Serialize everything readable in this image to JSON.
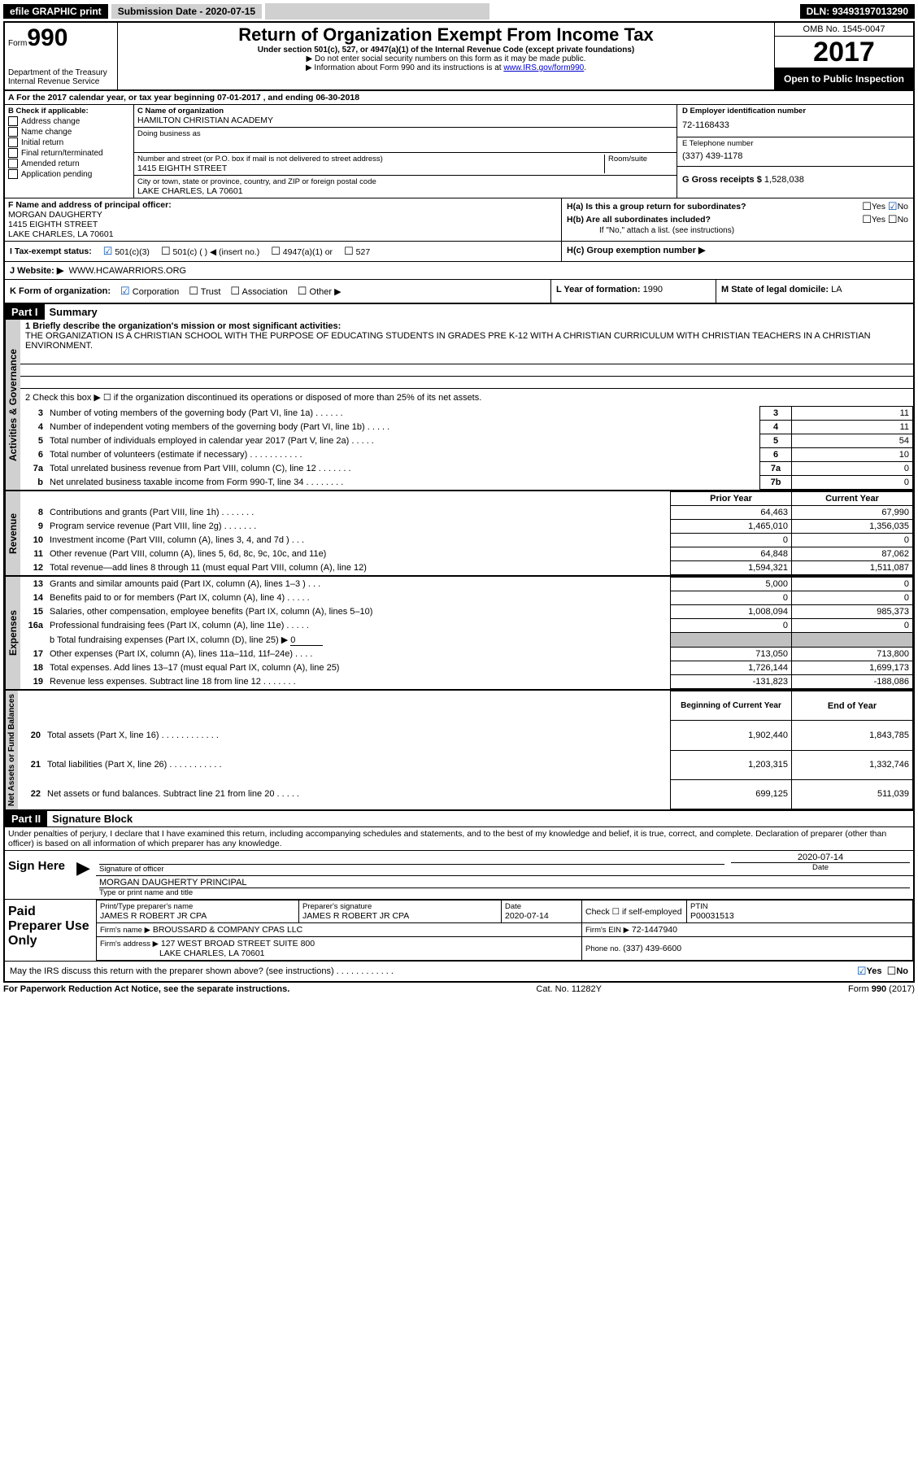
{
  "topbar": {
    "efile": "efile GRAPHIC print",
    "submission_label": "Submission Date - 2020-07-15",
    "dln": "DLN: 93493197013290"
  },
  "header": {
    "form_word": "Form",
    "form_no": "990",
    "dept1": "Department of the Treasury",
    "dept2": "Internal Revenue Service",
    "title": "Return of Organization Exempt From Income Tax",
    "subtitle": "Under section 501(c), 527, or 4947(a)(1) of the Internal Revenue Code (except private foundations)",
    "note1": "▶ Do not enter social security numbers on this form as it may be made public.",
    "note2_pre": "▶ Information about Form 990 and its instructions is at ",
    "note2_link": "www.IRS.gov/form990",
    "note2_post": ".",
    "omb": "OMB No. 1545-0047",
    "year": "2017",
    "open": "Open to Public Inspection"
  },
  "rowA": "A For the 2017 calendar year, or tax year beginning 07-01-2017     , and ending 06-30-2018",
  "boxB": {
    "title": "B Check if applicable:",
    "items": [
      "Address change",
      "Name change",
      "Initial return",
      "Final return/terminated",
      "Amended return",
      "Application pending"
    ]
  },
  "boxC": {
    "label_name": "C Name of organization",
    "org": "HAMILTON CHRISTIAN ACADEMY",
    "dba_label": "Doing business as",
    "addr_label": "Number and street (or P.O. box if mail is not delivered to street address)",
    "room_label": "Room/suite",
    "addr": "1415 EIGHTH STREET",
    "city_label": "City or town, state or province, country, and ZIP or foreign postal code",
    "city": "LAKE CHARLES, LA  70601"
  },
  "boxD": {
    "label": "D Employer identification number",
    "value": "72-1168433"
  },
  "boxE": {
    "label": "E Telephone number",
    "value": "(337) 439-1178"
  },
  "boxG": {
    "label": "G Gross receipts $",
    "value": "1,528,038"
  },
  "boxF": {
    "label": "F  Name and address of principal officer:",
    "lines": [
      "MORGAN DAUGHERTY",
      "1415 EIGHTH STREET",
      "LAKE CHARLES, LA  70601"
    ]
  },
  "boxH": {
    "a": "H(a)  Is this a group return for subordinates?",
    "b": "H(b)  Are all subordinates included?",
    "b_note": "If \"No,\" attach a list. (see instructions)",
    "c": "H(c)  Group exemption number ▶",
    "yes": "Yes",
    "no": "No"
  },
  "boxI": {
    "label": "I   Tax-exempt status:",
    "opts": [
      "501(c)(3)",
      "501(c) (   ) ◀ (insert no.)",
      "4947(a)(1) or",
      "527"
    ]
  },
  "boxJ": {
    "label": "J   Website: ▶",
    "value": "WWW.HCAWARRIORS.ORG"
  },
  "boxK": {
    "label": "K Form of organization:",
    "opts": [
      "Corporation",
      "Trust",
      "Association",
      "Other ▶"
    ]
  },
  "boxL": {
    "label": "L Year of formation:",
    "value": "1990"
  },
  "boxM": {
    "label": "M State of legal domicile:",
    "value": "LA"
  },
  "part1": {
    "label": "Part I",
    "title": "Summary",
    "q1": "1  Briefly describe the organization's mission or most significant activities:",
    "mission": "THE ORGANIZATION IS A CHRISTIAN SCHOOL WITH THE PURPOSE OF EDUCATING STUDENTS IN GRADES PRE K-12 WITH A CHRISTIAN CURRICULUM WITH CHRISTIAN TEACHERS IN A CHRISTIAN ENVIRONMENT.",
    "q2": "2  Check this box ▶ ☐  if the organization discontinued its operations or disposed of more than 25% of its net assets.",
    "rows": [
      {
        "n": "3",
        "t": "Number of voting members of the governing body (Part VI, line 1a)   .    .    .    .    .    .",
        "k": "3",
        "v": "11"
      },
      {
        "n": "4",
        "t": "Number of independent voting members of the governing body (Part VI, line 1b)  .    .    .    .    .",
        "k": "4",
        "v": "11"
      },
      {
        "n": "5",
        "t": "Total number of individuals employed in calendar year 2017 (Part V, line 2a)  .    .    .    .    .",
        "k": "5",
        "v": "54"
      },
      {
        "n": "6",
        "t": "Total number of volunteers (estimate if necessary)   .    .    .    .    .    .    .    .    .    .    .",
        "k": "6",
        "v": "10"
      },
      {
        "n": "7a",
        "t": "Total unrelated business revenue from Part VIII, column (C), line 12  .    .    .    .    .    .    .",
        "k": "7a",
        "v": "0"
      },
      {
        "n": "b",
        "t": "Net unrelated business taxable income from Form 990-T, line 34   .    .    .    .    .    .    .    .",
        "k": "7b",
        "v": "0"
      }
    ],
    "hdr_prior": "Prior Year",
    "hdr_curr": "Current Year",
    "rev": [
      {
        "n": "8",
        "t": "Contributions and grants (Part VIII, line 1h)   .    .    .    .    .    .    .",
        "p": "64,463",
        "c": "67,990"
      },
      {
        "n": "9",
        "t": "Program service revenue (Part VIII, line 2g)  .    .    .    .    .    .    .",
        "p": "1,465,010",
        "c": "1,356,035"
      },
      {
        "n": "10",
        "t": "Investment income (Part VIII, column (A), lines 3, 4, and 7d )  .    .    .",
        "p": "0",
        "c": "0"
      },
      {
        "n": "11",
        "t": "Other revenue (Part VIII, column (A), lines 5, 6d, 8c, 9c, 10c, and 11e)",
        "p": "64,848",
        "c": "87,062"
      },
      {
        "n": "12",
        "t": "Total revenue—add lines 8 through 11 (must equal Part VIII, column (A), line 12)",
        "p": "1,594,321",
        "c": "1,511,087"
      }
    ],
    "exp": [
      {
        "n": "13",
        "t": "Grants and similar amounts paid (Part IX, column (A), lines 1–3 )   .    .    .",
        "p": "5,000",
        "c": "0"
      },
      {
        "n": "14",
        "t": "Benefits paid to or for members (Part IX, column (A), line 4)  .    .    .    .    .",
        "p": "0",
        "c": "0"
      },
      {
        "n": "15",
        "t": "Salaries, other compensation, employee benefits (Part IX, column (A), lines 5–10)",
        "p": "1,008,094",
        "c": "985,373"
      },
      {
        "n": "16a",
        "t": "Professional fundraising fees (Part IX, column (A), line 11e)  .    .    .    .    .",
        "p": "0",
        "c": "0"
      }
    ],
    "exp_b": "b  Total fundraising expenses (Part IX, column (D), line 25) ▶",
    "exp_b_val": "0",
    "exp2": [
      {
        "n": "17",
        "t": "Other expenses (Part IX, column (A), lines 11a–11d, 11f–24e)  .    .    .    .",
        "p": "713,050",
        "c": "713,800"
      },
      {
        "n": "18",
        "t": "Total expenses. Add lines 13–17 (must equal Part IX, column (A), line 25)",
        "p": "1,726,144",
        "c": "1,699,173"
      },
      {
        "n": "19",
        "t": "Revenue less expenses. Subtract line 18 from line 12  .    .    .    .    .    .    .",
        "p": "-131,823",
        "c": "-188,086"
      }
    ],
    "hdr_beg": "Beginning of Current Year",
    "hdr_end": "End of Year",
    "net": [
      {
        "n": "20",
        "t": "Total assets (Part X, line 16)  .    .    .    .    .    .    .    .    .    .    .    .",
        "p": "1,902,440",
        "c": "1,843,785"
      },
      {
        "n": "21",
        "t": "Total liabilities (Part X, line 26)  .    .    .    .    .    .    .    .    .    .    .",
        "p": "1,203,315",
        "c": "1,332,746"
      },
      {
        "n": "22",
        "t": "Net assets or fund balances. Subtract line 21 from line 20  .    .    .    .    .",
        "p": "699,125",
        "c": "511,039"
      }
    ]
  },
  "vtabs": {
    "act": "Activities & Governance",
    "rev": "Revenue",
    "exp": "Expenses",
    "net": "Net Assets or Fund Balances"
  },
  "part2": {
    "label": "Part II",
    "title": "Signature Block",
    "decl": "Under penalties of perjury, I declare that I have examined this return, including accompanying schedules and statements, and to the best of my knowledge and belief, it is true, correct, and complete. Declaration of preparer (other than officer) is based on all information of which preparer has any knowledge."
  },
  "sign": {
    "here": "Sign Here",
    "sig_label": "Signature of officer",
    "date_label": "Date",
    "date": "2020-07-14",
    "name_label": "Type or print name and title",
    "name": "MORGAN DAUGHERTY  PRINCIPAL"
  },
  "paid": {
    "label": "Paid Preparer Use Only",
    "prep_name_label": "Print/Type preparer's name",
    "prep_name": "JAMES R ROBERT JR CPA",
    "prep_sig_label": "Preparer's signature",
    "prep_sig": "JAMES R ROBERT JR CPA",
    "prep_date_label": "Date",
    "prep_date": "2020-07-14",
    "self_label": "Check ☐ if self-employed",
    "ptin_label": "PTIN",
    "ptin": "P00031513",
    "firm_name_label": "Firm's name    ▶",
    "firm_name": "BROUSSARD & COMPANY CPAS LLC",
    "firm_addr_label": "Firm's address ▶",
    "firm_addr1": "127 WEST BROAD STREET SUITE 800",
    "firm_addr2": "LAKE CHARLES, LA  70601",
    "firm_ein_label": "Firm's EIN ▶",
    "firm_ein": "72-1447940",
    "phone_label": "Phone no.",
    "phone": "(337) 439-6600"
  },
  "discuss": {
    "q": "May the IRS discuss this return with the preparer shown above? (see instructions)    .    .    .    .    .    .    .    .    .    .    .    .",
    "yes": "Yes",
    "no": "No"
  },
  "footer": {
    "left": "For Paperwork Reduction Act Notice, see the separate instructions.",
    "mid": "Cat. No. 11282Y",
    "right": "Form 990 (2017)"
  }
}
